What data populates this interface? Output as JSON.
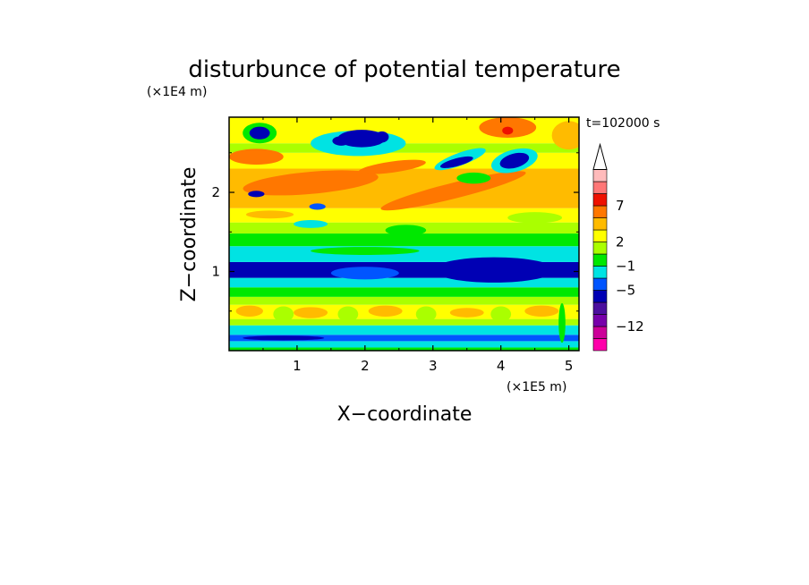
{
  "chart_data": {
    "type": "heatmap",
    "title": "disturbunce of potential temperature",
    "time_label": "t=102000 s",
    "xlabel": "X−coordinate",
    "ylabel": "Z−coordinate",
    "x_scale_label": "(×1E5 m)",
    "y_scale_label": "(×1E4 m)",
    "xlim": [
      0,
      5.15
    ],
    "ylim": [
      0,
      2.95
    ],
    "x_ticks": [
      "1",
      "2",
      "3",
      "4",
      "5"
    ],
    "x_tick_values": [
      1,
      2,
      3,
      4,
      5
    ],
    "y_ticks": [
      "1",
      "2"
    ],
    "y_tick_values": [
      1,
      2
    ],
    "colorbar": {
      "labels": [
        "7",
        "2",
        "−1",
        "−5",
        "−12"
      ],
      "label_level_index": [
        3,
        6,
        8,
        10,
        13
      ],
      "colors_bottom_to_top": [
        "#ff00aa",
        "#cc0099",
        "#7700aa",
        "#4b0f9e",
        "#0000b4",
        "#0055ff",
        "#00e3e3",
        "#00e800",
        "#aaff00",
        "#ffff00",
        "#ffbb00",
        "#ff7700",
        "#ee1100",
        "#ff7777",
        "#ffbbbb"
      ],
      "extend_top_color": "#ffffff"
    },
    "bands": [
      {
        "z_bottom": 0.0,
        "z_top": 0.04,
        "color": "#00e800"
      },
      {
        "z_bottom": 0.04,
        "z_top": 0.12,
        "color": "#00e3e3"
      },
      {
        "z_bottom": 0.12,
        "z_top": 0.2,
        "color": "#0055ff"
      },
      {
        "z_bottom": 0.2,
        "z_top": 0.32,
        "color": "#00e3e3"
      },
      {
        "z_bottom": 0.32,
        "z_top": 0.4,
        "color": "#aaff00"
      },
      {
        "z_bottom": 0.4,
        "z_top": 0.58,
        "color": "#ffff00"
      },
      {
        "z_bottom": 0.58,
        "z_top": 0.68,
        "color": "#aaff00"
      },
      {
        "z_bottom": 0.68,
        "z_top": 0.8,
        "color": "#00e800"
      },
      {
        "z_bottom": 0.8,
        "z_top": 0.92,
        "color": "#00e3e3"
      },
      {
        "z_bottom": 0.92,
        "z_top": 1.12,
        "color": "#0000b4"
      },
      {
        "z_bottom": 1.12,
        "z_top": 1.32,
        "color": "#00e3e3"
      },
      {
        "z_bottom": 1.32,
        "z_top": 1.48,
        "color": "#00e800"
      },
      {
        "z_bottom": 1.48,
        "z_top": 1.62,
        "color": "#aaff00"
      },
      {
        "z_bottom": 1.62,
        "z_top": 1.8,
        "color": "#ffff00"
      },
      {
        "z_bottom": 1.8,
        "z_top": 2.3,
        "color": "#ffbb00"
      },
      {
        "z_bottom": 2.3,
        "z_top": 2.5,
        "color": "#ffff00"
      },
      {
        "z_bottom": 2.5,
        "z_top": 2.62,
        "color": "#aaff00"
      },
      {
        "z_bottom": 2.62,
        "z_top": 2.95,
        "color": "#ffff00"
      }
    ],
    "blobs": [
      {
        "x": 1.2,
        "z": 2.12,
        "rx": 1.0,
        "rz": 0.14,
        "rot": -5,
        "color": "#ff7700"
      },
      {
        "x": 3.3,
        "z": 2.02,
        "rx": 1.1,
        "rz": 0.1,
        "rot": -14,
        "color": "#ff7700"
      },
      {
        "x": 0.4,
        "z": 2.45,
        "rx": 0.4,
        "rz": 0.1,
        "rot": 0,
        "color": "#ff7700"
      },
      {
        "x": 2.4,
        "z": 2.32,
        "rx": 0.5,
        "rz": 0.07,
        "rot": -8,
        "color": "#ff7700"
      },
      {
        "x": 4.1,
        "z": 2.82,
        "rx": 0.42,
        "rz": 0.13,
        "rot": 0,
        "color": "#ff7700"
      },
      {
        "x": 5.0,
        "z": 2.72,
        "rx": 0.25,
        "rz": 0.18,
        "rot": 0,
        "color": "#ffbb00"
      },
      {
        "x": 4.1,
        "z": 2.78,
        "rx": 0.08,
        "rz": 0.05,
        "rot": 0,
        "color": "#ee1100"
      },
      {
        "x": 0.45,
        "z": 2.75,
        "rx": 0.25,
        "rz": 0.13,
        "rot": 0,
        "color": "#00e800"
      },
      {
        "x": 1.9,
        "z": 2.62,
        "rx": 0.7,
        "rz": 0.16,
        "rot": 0,
        "color": "#00e3e3"
      },
      {
        "x": 3.4,
        "z": 2.42,
        "rx": 0.4,
        "rz": 0.08,
        "rot": -20,
        "color": "#00e3e3"
      },
      {
        "x": 3.6,
        "z": 2.18,
        "rx": 0.25,
        "rz": 0.07,
        "rot": 0,
        "color": "#00e800"
      },
      {
        "x": 4.2,
        "z": 2.4,
        "rx": 0.35,
        "rz": 0.14,
        "rot": -15,
        "color": "#00e3e3"
      },
      {
        "x": 0.45,
        "z": 2.75,
        "rx": 0.15,
        "rz": 0.08,
        "rot": 0,
        "color": "#0000b4"
      },
      {
        "x": 1.95,
        "z": 2.68,
        "rx": 0.35,
        "rz": 0.11,
        "rot": 0,
        "color": "#0000b4"
      },
      {
        "x": 1.65,
        "z": 2.65,
        "rx": 0.13,
        "rz": 0.06,
        "rot": 0,
        "color": "#0000b4"
      },
      {
        "x": 2.25,
        "z": 2.7,
        "rx": 0.1,
        "rz": 0.07,
        "rot": 0,
        "color": "#0000b4"
      },
      {
        "x": 3.35,
        "z": 2.38,
        "rx": 0.25,
        "rz": 0.05,
        "rot": -15,
        "color": "#0000b4"
      },
      {
        "x": 4.2,
        "z": 2.4,
        "rx": 0.22,
        "rz": 0.09,
        "rot": -15,
        "color": "#0000b4"
      },
      {
        "x": 0.4,
        "z": 1.98,
        "rx": 0.12,
        "rz": 0.04,
        "rot": 0,
        "color": "#0000b4"
      },
      {
        "x": 1.3,
        "z": 1.82,
        "rx": 0.12,
        "rz": 0.04,
        "rot": 0,
        "color": "#0055ff"
      },
      {
        "x": 1.2,
        "z": 1.6,
        "rx": 0.25,
        "rz": 0.05,
        "rot": 0,
        "color": "#00e3e3"
      },
      {
        "x": 2.6,
        "z": 1.52,
        "rx": 0.3,
        "rz": 0.07,
        "rot": 0,
        "color": "#00e800"
      },
      {
        "x": 4.5,
        "z": 1.68,
        "rx": 0.4,
        "rz": 0.07,
        "rot": 0,
        "color": "#aaff00"
      },
      {
        "x": 0.6,
        "z": 1.72,
        "rx": 0.35,
        "rz": 0.05,
        "rot": 0,
        "color": "#ffbb00"
      },
      {
        "x": 2.0,
        "z": 1.26,
        "rx": 0.8,
        "rz": 0.05,
        "rot": 0,
        "color": "#00e800"
      },
      {
        "x": 3.9,
        "z": 1.02,
        "rx": 0.9,
        "rz": 0.16,
        "rot": 0,
        "color": "#0000b4"
      },
      {
        "x": 2.0,
        "z": 0.98,
        "rx": 0.5,
        "rz": 0.08,
        "rot": 0,
        "color": "#0055ff"
      },
      {
        "x": 0.3,
        "z": 0.5,
        "rx": 0.2,
        "rz": 0.07,
        "rot": 0,
        "color": "#ffbb00"
      },
      {
        "x": 1.2,
        "z": 0.48,
        "rx": 0.25,
        "rz": 0.07,
        "rot": 0,
        "color": "#ffbb00"
      },
      {
        "x": 2.3,
        "z": 0.5,
        "rx": 0.25,
        "rz": 0.07,
        "rot": 0,
        "color": "#ffbb00"
      },
      {
        "x": 3.5,
        "z": 0.48,
        "rx": 0.25,
        "rz": 0.06,
        "rot": 0,
        "color": "#ffbb00"
      },
      {
        "x": 4.6,
        "z": 0.5,
        "rx": 0.25,
        "rz": 0.07,
        "rot": 0,
        "color": "#ffbb00"
      },
      {
        "x": 0.8,
        "z": 0.46,
        "rx": 0.15,
        "rz": 0.1,
        "rot": 0,
        "color": "#aaff00"
      },
      {
        "x": 1.75,
        "z": 0.46,
        "rx": 0.15,
        "rz": 0.1,
        "rot": 0,
        "color": "#aaff00"
      },
      {
        "x": 2.9,
        "z": 0.46,
        "rx": 0.15,
        "rz": 0.1,
        "rot": 0,
        "color": "#aaff00"
      },
      {
        "x": 4.0,
        "z": 0.46,
        "rx": 0.15,
        "rz": 0.1,
        "rot": 0,
        "color": "#aaff00"
      },
      {
        "x": 0.8,
        "z": 0.16,
        "rx": 0.6,
        "rz": 0.03,
        "rot": 0,
        "color": "#0000b4"
      },
      {
        "x": 4.9,
        "z": 0.35,
        "rx": 0.05,
        "rz": 0.25,
        "rot": 0,
        "color": "#00e800"
      }
    ]
  }
}
